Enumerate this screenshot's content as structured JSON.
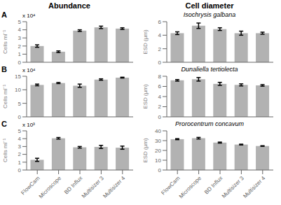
{
  "chart_data": [
    {
      "type": "bar",
      "title": "Abundance",
      "annotations": [
        "A",
        "x 10⁴"
      ],
      "categories": [
        "FlowCam",
        "Microscope",
        "BD Influx",
        "Multisizer 3",
        "Multisizer 4"
      ],
      "values": [
        2.0,
        1.3,
        3.9,
        4.3,
        4.15
      ],
      "errors": [
        0.15,
        0.1,
        0.1,
        0.15,
        0.1
      ],
      "color": "#b2b2b2",
      "ylabel": "Cells ml⁻¹",
      "ylim": [
        0,
        5
      ],
      "yticks": [
        0,
        1,
        2,
        3,
        4,
        5
      ],
      "grid": false,
      "tick_labels": "y"
    },
    {
      "type": "bar",
      "title": "Cell diameter",
      "subtitle": "Isochrysis galbana",
      "categories": [
        "FlowCam",
        "Microscope",
        "BD Influx",
        "Multisizer 3",
        "Multisizer 4"
      ],
      "values": [
        4.3,
        5.4,
        4.9,
        4.3,
        4.3
      ],
      "errors": [
        0.2,
        0.4,
        0.2,
        0.3,
        0.15
      ],
      "color": "#b2b2b2",
      "ylabel": "ESD (μm)",
      "ylim": [
        0,
        6
      ],
      "yticks": [
        0,
        2,
        4,
        6
      ],
      "grid": false,
      "tick_labels": "y"
    },
    {
      "type": "bar",
      "annotations": [
        "B",
        "x 10⁴"
      ],
      "categories": [
        "FlowCam",
        "Microscope",
        "BD Influx",
        "Multisizer 3",
        "Multisizer 4"
      ],
      "values": [
        11.8,
        12.5,
        11.5,
        13.8,
        14.5
      ],
      "errors": [
        0.3,
        0.2,
        0.6,
        0.25,
        0.15
      ],
      "color": "#b2b2b2",
      "ylabel": "Cells ml⁻¹",
      "ylim": [
        0,
        15
      ],
      "yticks": [
        0,
        5,
        10,
        15
      ],
      "grid": false,
      "tick_labels": "y"
    },
    {
      "type": "bar",
      "subtitle": "Dunaliella tertiolecta",
      "categories": [
        "FlowCam",
        "Microscope",
        "BD Influx",
        "Multisizer 3",
        "Multisizer 4"
      ],
      "values": [
        7.2,
        7.4,
        6.5,
        6.3,
        6.2
      ],
      "errors": [
        0.15,
        0.35,
        0.3,
        0.2,
        0.15
      ],
      "color": "#b2b2b2",
      "ylabel": "ESD (μm)",
      "ylim": [
        0,
        8
      ],
      "yticks": [
        0,
        2,
        4,
        6,
        8
      ],
      "grid": false,
      "tick_labels": "y"
    },
    {
      "type": "bar",
      "annotations": [
        "C",
        "x 10³"
      ],
      "categories": [
        "FlowCam",
        "Microscope",
        "BD Influx",
        "Multisizer 3",
        "Multisizer 4"
      ],
      "values": [
        1.3,
        4.05,
        2.9,
        2.95,
        2.85
      ],
      "errors": [
        0.2,
        0.1,
        0.1,
        0.2,
        0.2
      ],
      "color": "#b2b2b2",
      "ylabel": "Cells ml⁻¹",
      "ylim": [
        0,
        5
      ],
      "yticks": [
        0,
        1,
        2,
        3,
        4,
        5
      ],
      "grid": false
    },
    {
      "type": "bar",
      "subtitle": "Prorocentrum concavum",
      "categories": [
        "FlowCam",
        "Microscope",
        "BD Influx",
        "Multisizer 3",
        "Multisizer 4"
      ],
      "values": [
        31.5,
        32.5,
        28.0,
        26.0,
        24.5
      ],
      "errors": [
        0.5,
        0.8,
        0.5,
        0.4,
        0.3
      ],
      "color": "#b2b2b2",
      "ylabel": "ESD (μm)",
      "ylim": [
        0,
        40
      ],
      "yticks": [
        0,
        10,
        20,
        30,
        40
      ],
      "grid": false
    }
  ]
}
